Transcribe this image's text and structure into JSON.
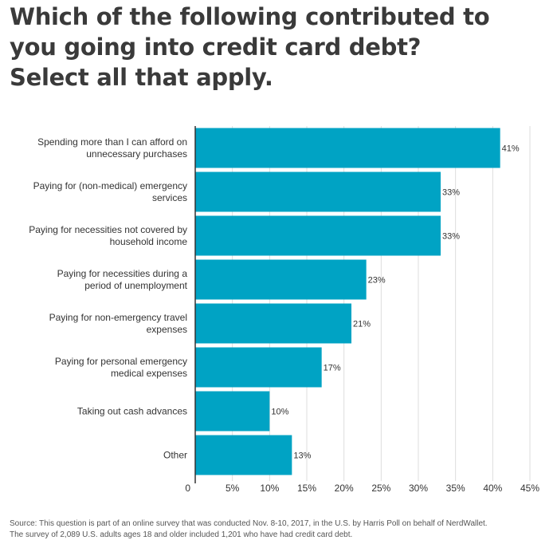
{
  "title_lines": [
    "Which of the following contributed to",
    "you going into credit card debt?",
    "Select all that apply."
  ],
  "source_lines": [
    "Source: This question is part of an online survey that was conducted Nov. 8-10, 2017, in the U.S. by Harris Poll on behalf of NerdWallet.",
    "The survey of 2,089 U.S. adults ages 18 and older included 1,201 who have had credit card debt."
  ],
  "colors": {
    "bar": "#00a3c4",
    "gridline": "#dddddd",
    "axis": "#333333",
    "text": "#333333"
  },
  "chart_data": {
    "type": "bar",
    "orientation": "horizontal",
    "categories": [
      [
        "Spending more than I can afford on",
        "unnecessary purchases"
      ],
      [
        "Paying for (non-medical) emergency",
        "services"
      ],
      [
        "Paying for necessities not covered by",
        "household income"
      ],
      [
        "Paying for necessities during a",
        "period of unemployment"
      ],
      [
        "Paying for non-emergency travel",
        "expenses"
      ],
      [
        "Paying for personal emergency",
        "medical expenses"
      ],
      [
        "Taking out cash advances"
      ],
      [
        "Other"
      ]
    ],
    "values": [
      41,
      33,
      33,
      23,
      21,
      17,
      10,
      13
    ],
    "value_labels": [
      "41%",
      "33%",
      "33%",
      "23%",
      "21%",
      "17%",
      "10%",
      "13%"
    ],
    "xlim": [
      0,
      45
    ],
    "x_ticks": [
      0,
      5,
      10,
      15,
      20,
      25,
      30,
      35,
      40,
      45
    ],
    "x_tick_labels": [
      "0",
      "5%",
      "10%",
      "15%",
      "20%",
      "25%",
      "30%",
      "35%",
      "40%",
      "45%"
    ],
    "grid": true
  }
}
